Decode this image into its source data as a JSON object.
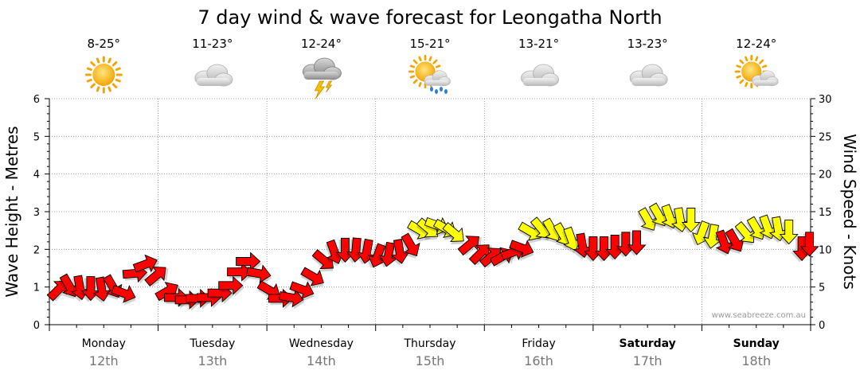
{
  "chart_data": {
    "type": "line",
    "title": "7 day wind & wave forecast for Leongatha North",
    "ylabel_left": "Wave Height - Metres",
    "ylabel_right": "Wind Speed - Knots",
    "y_left_lim": [
      0,
      6
    ],
    "y_right_lim": [
      0,
      30
    ],
    "y_left_ticks": [
      "0",
      "1",
      "2",
      "3",
      "4",
      "5",
      "6"
    ],
    "y_right_ticks": [
      "0",
      "5",
      "10",
      "15",
      "20",
      "25",
      "30"
    ],
    "credit": "www.seabreeze.com.au",
    "days": [
      {
        "name": "Monday",
        "date": "12th",
        "bold": false,
        "temp": "8-25°",
        "icon": "sun-icon"
      },
      {
        "name": "Tuesday",
        "date": "13th",
        "bold": false,
        "temp": "11-23°",
        "icon": "cloud-icon"
      },
      {
        "name": "Wednesday",
        "date": "14th",
        "bold": false,
        "temp": "12-24°",
        "icon": "storm-icon"
      },
      {
        "name": "Thursday",
        "date": "15th",
        "bold": false,
        "temp": "15-21°",
        "icon": "sun-shower-icon"
      },
      {
        "name": "Friday",
        "date": "16th",
        "bold": false,
        "temp": "13-21°",
        "icon": "cloud-icon"
      },
      {
        "name": "Saturday",
        "date": "17th",
        "bold": true,
        "temp": "13-23°",
        "icon": "cloud-icon"
      },
      {
        "name": "Sunday",
        "date": "18th",
        "bold": true,
        "temp": "12-24°",
        "icon": "partly-cloudy-icon"
      }
    ],
    "x_unit": "day_fraction",
    "wind_unit": "knots",
    "wind_series": [
      {
        "x": 0.08,
        "knots": 4.6,
        "dir_deg": 315,
        "color": "red"
      },
      {
        "x": 0.18,
        "knots": 5.2,
        "dir_deg": 60,
        "color": "red"
      },
      {
        "x": 0.28,
        "knots": 5.0,
        "dir_deg": 80,
        "color": "red"
      },
      {
        "x": 0.38,
        "knots": 4.9,
        "dir_deg": 90,
        "color": "red"
      },
      {
        "x": 0.48,
        "knots": 4.8,
        "dir_deg": 80,
        "color": "red"
      },
      {
        "x": 0.58,
        "knots": 5.1,
        "dir_deg": 60,
        "color": "red"
      },
      {
        "x": 0.68,
        "knots": 4.2,
        "dir_deg": 20,
        "color": "red"
      },
      {
        "x": 0.78,
        "knots": 6.8,
        "dir_deg": 355,
        "color": "red"
      },
      {
        "x": 0.88,
        "knots": 8.0,
        "dir_deg": 340,
        "color": "red"
      },
      {
        "x": 0.98,
        "knots": 6.5,
        "dir_deg": 320,
        "color": "red"
      },
      {
        "x": 1.08,
        "knots": 4.4,
        "dir_deg": 330,
        "color": "red"
      },
      {
        "x": 1.16,
        "knots": 3.6,
        "dir_deg": 0,
        "color": "red"
      },
      {
        "x": 1.26,
        "knots": 3.3,
        "dir_deg": 0,
        "color": "red"
      },
      {
        "x": 1.36,
        "knots": 3.5,
        "dir_deg": 0,
        "color": "red"
      },
      {
        "x": 1.46,
        "knots": 3.6,
        "dir_deg": 0,
        "color": "red"
      },
      {
        "x": 1.56,
        "knots": 4.2,
        "dir_deg": 0,
        "color": "red"
      },
      {
        "x": 1.66,
        "knots": 5.2,
        "dir_deg": 0,
        "color": "red"
      },
      {
        "x": 1.74,
        "knots": 7.0,
        "dir_deg": 0,
        "color": "red"
      },
      {
        "x": 1.82,
        "knots": 8.4,
        "dir_deg": 0,
        "color": "red"
      },
      {
        "x": 1.92,
        "knots": 6.8,
        "dir_deg": 10,
        "color": "red"
      },
      {
        "x": 2.02,
        "knots": 4.6,
        "dir_deg": 30,
        "color": "red"
      },
      {
        "x": 2.12,
        "knots": 3.5,
        "dir_deg": 0,
        "color": "red"
      },
      {
        "x": 2.22,
        "knots": 3.6,
        "dir_deg": 10,
        "color": "red"
      },
      {
        "x": 2.32,
        "knots": 4.7,
        "dir_deg": 20,
        "color": "red"
      },
      {
        "x": 2.42,
        "knots": 6.4,
        "dir_deg": 30,
        "color": "red"
      },
      {
        "x": 2.52,
        "knots": 8.6,
        "dir_deg": 40,
        "color": "red"
      },
      {
        "x": 2.62,
        "knots": 9.7,
        "dir_deg": 70,
        "color": "red"
      },
      {
        "x": 2.72,
        "knots": 10.0,
        "dir_deg": 90,
        "color": "red"
      },
      {
        "x": 2.82,
        "knots": 10.0,
        "dir_deg": 95,
        "color": "red"
      },
      {
        "x": 2.92,
        "knots": 9.8,
        "dir_deg": 100,
        "color": "red"
      },
      {
        "x": 3.02,
        "knots": 9.2,
        "dir_deg": 110,
        "color": "red"
      },
      {
        "x": 3.12,
        "knots": 9.4,
        "dir_deg": 100,
        "color": "red"
      },
      {
        "x": 3.22,
        "knots": 9.8,
        "dir_deg": 80,
        "color": "red"
      },
      {
        "x": 3.32,
        "knots": 10.6,
        "dir_deg": 60,
        "color": "red"
      },
      {
        "x": 3.4,
        "knots": 12.6,
        "dir_deg": 30,
        "color": "yellow"
      },
      {
        "x": 3.48,
        "knots": 12.8,
        "dir_deg": 40,
        "color": "yellow"
      },
      {
        "x": 3.56,
        "knots": 13.2,
        "dir_deg": 20,
        "color": "yellow"
      },
      {
        "x": 3.64,
        "knots": 12.8,
        "dir_deg": 30,
        "color": "yellow"
      },
      {
        "x": 3.72,
        "knots": 12.2,
        "dir_deg": 40,
        "color": "yellow"
      },
      {
        "x": 3.86,
        "knots": 10.6,
        "dir_deg": 320,
        "color": "red"
      },
      {
        "x": 3.96,
        "knots": 9.4,
        "dir_deg": 315,
        "color": "red"
      },
      {
        "x": 4.06,
        "knots": 9.0,
        "dir_deg": 320,
        "color": "red"
      },
      {
        "x": 4.16,
        "knots": 9.0,
        "dir_deg": 330,
        "color": "red"
      },
      {
        "x": 4.26,
        "knots": 9.6,
        "dir_deg": 340,
        "color": "red"
      },
      {
        "x": 4.34,
        "knots": 10.2,
        "dir_deg": 20,
        "color": "red"
      },
      {
        "x": 4.42,
        "knots": 12.4,
        "dir_deg": 30,
        "color": "yellow"
      },
      {
        "x": 4.52,
        "knots": 12.8,
        "dir_deg": 50,
        "color": "yellow"
      },
      {
        "x": 4.62,
        "knots": 12.6,
        "dir_deg": 60,
        "color": "yellow"
      },
      {
        "x": 4.72,
        "knots": 12.0,
        "dir_deg": 60,
        "color": "yellow"
      },
      {
        "x": 4.8,
        "knots": 11.4,
        "dir_deg": 70,
        "color": "yellow"
      },
      {
        "x": 4.9,
        "knots": 10.6,
        "dir_deg": 80,
        "color": "red"
      },
      {
        "x": 5.0,
        "knots": 10.2,
        "dir_deg": 90,
        "color": "red"
      },
      {
        "x": 5.1,
        "knots": 10.2,
        "dir_deg": 90,
        "color": "red"
      },
      {
        "x": 5.2,
        "knots": 10.4,
        "dir_deg": 90,
        "color": "red"
      },
      {
        "x": 5.3,
        "knots": 10.8,
        "dir_deg": 90,
        "color": "red"
      },
      {
        "x": 5.4,
        "knots": 11.0,
        "dir_deg": 90,
        "color": "red"
      },
      {
        "x": 5.5,
        "knots": 14.0,
        "dir_deg": 60,
        "color": "yellow"
      },
      {
        "x": 5.6,
        "knots": 14.6,
        "dir_deg": 60,
        "color": "yellow"
      },
      {
        "x": 5.7,
        "knots": 14.4,
        "dir_deg": 70,
        "color": "yellow"
      },
      {
        "x": 5.8,
        "knots": 14.0,
        "dir_deg": 80,
        "color": "yellow"
      },
      {
        "x": 5.9,
        "knots": 14.0,
        "dir_deg": 90,
        "color": "yellow"
      },
      {
        "x": 6.0,
        "knots": 12.2,
        "dir_deg": 110,
        "color": "yellow"
      },
      {
        "x": 6.1,
        "knots": 11.8,
        "dir_deg": 100,
        "color": "yellow"
      },
      {
        "x": 6.2,
        "knots": 11.0,
        "dir_deg": 70,
        "color": "red"
      },
      {
        "x": 6.3,
        "knots": 11.2,
        "dir_deg": 60,
        "color": "red"
      },
      {
        "x": 6.4,
        "knots": 12.2,
        "dir_deg": 50,
        "color": "yellow"
      },
      {
        "x": 6.5,
        "knots": 12.8,
        "dir_deg": 60,
        "color": "yellow"
      },
      {
        "x": 6.6,
        "knots": 13.0,
        "dir_deg": 70,
        "color": "yellow"
      },
      {
        "x": 6.7,
        "knots": 12.8,
        "dir_deg": 80,
        "color": "yellow"
      },
      {
        "x": 6.8,
        "knots": 12.4,
        "dir_deg": 90,
        "color": "yellow"
      },
      {
        "x": 6.92,
        "knots": 10.2,
        "dir_deg": 90,
        "color": "red"
      },
      {
        "x": 6.99,
        "knots": 10.8,
        "dir_deg": 90,
        "color": "red"
      }
    ],
    "colors": {
      "red": "#ff0000",
      "yellow": "#ffff00",
      "outline": "#000000"
    }
  }
}
